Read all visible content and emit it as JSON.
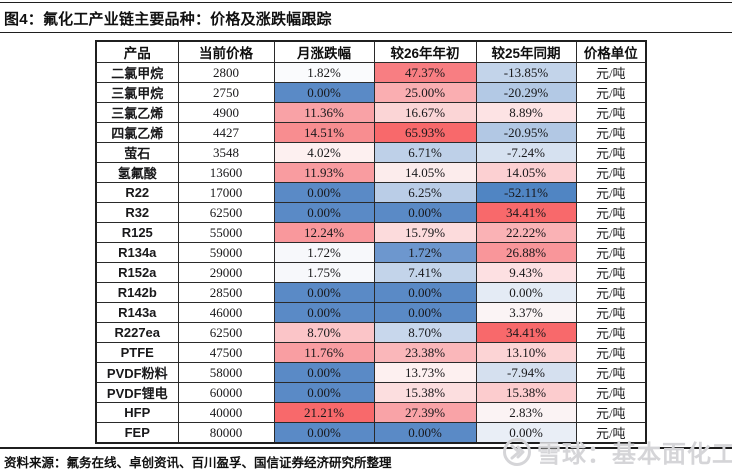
{
  "title": "图4：氟化工产业链主要品种：价格及涨跌幅跟踪",
  "source_note": "资料来源：氟务在线、卓创资讯、百川盈孚、国信证券经济研究所整理",
  "watermark": {
    "text": "雪球：基本面化工",
    "icon": "xueqiu-snowball-logo",
    "color": "#d5d5d8"
  },
  "colors": {
    "max_up_red": "#f8696b",
    "max_down_blue": "#5a8ac6",
    "border": "#1f1f1f"
  },
  "table": {
    "headers": [
      "产品",
      "当前价格",
      "月涨跌幅",
      "较26年年初",
      "较25年同期",
      "价格单位"
    ],
    "rows": [
      {
        "product": "二氯甲烷",
        "price": "2800",
        "monthly": {
          "v": "1.82%",
          "bg": "#fafbfd"
        },
        "vs26": {
          "v": "47.37%",
          "bg": "#f87e82"
        },
        "vs25": {
          "v": "-13.85%",
          "bg": "#c3d4ea"
        },
        "unit": "元/吨"
      },
      {
        "product": "三氯甲烷",
        "price": "2750",
        "monthly": {
          "v": "0.00%",
          "bg": "#5a8ac6"
        },
        "vs26": {
          "v": "25.00%",
          "bg": "#faaeb1"
        },
        "vs25": {
          "v": "-20.29%",
          "bg": "#b3c9e5"
        },
        "unit": "元/吨"
      },
      {
        "product": "三氯乙烯",
        "price": "4900",
        "monthly": {
          "v": "11.36%",
          "bg": "#f9a2a6"
        },
        "vs26": {
          "v": "16.67%",
          "bg": "#fbd5d6"
        },
        "vs25": {
          "v": "8.89%",
          "bg": "#fde3e4"
        },
        "unit": "元/吨"
      },
      {
        "product": "四氯乙烯",
        "price": "4427",
        "monthly": {
          "v": "14.51%",
          "bg": "#f88d90"
        },
        "vs26": {
          "v": "65.93%",
          "bg": "#f8696b"
        },
        "vs25": {
          "v": "-20.95%",
          "bg": "#b2c8e4"
        },
        "unit": "元/吨"
      },
      {
        "product": "萤石",
        "price": "3548",
        "monthly": {
          "v": "4.02%",
          "bg": "#fdf0f0"
        },
        "vs26": {
          "v": "6.71%",
          "bg": "#bed0e8"
        },
        "vs25": {
          "v": "-7.24%",
          "bg": "#d6e1f0"
        },
        "unit": "元/吨"
      },
      {
        "product": "氢氟酸",
        "price": "13600",
        "monthly": {
          "v": "11.93%",
          "bg": "#f99ca0"
        },
        "vs26": {
          "v": "14.05%",
          "bg": "#fcecec"
        },
        "vs25": {
          "v": "14.05%",
          "bg": "#fcd0d2"
        },
        "unit": "元/吨"
      },
      {
        "product": "R22",
        "price": "17000",
        "monthly": {
          "v": "0.00%",
          "bg": "#5a8ac6"
        },
        "vs26": {
          "v": "6.25%",
          "bg": "#bacde7"
        },
        "vs25": {
          "v": "-52.11%",
          "bg": "#5085c3"
        },
        "unit": "元/吨"
      },
      {
        "product": "R32",
        "price": "62500",
        "monthly": {
          "v": "0.00%",
          "bg": "#5a8ac6"
        },
        "vs26": {
          "v": "0.00%",
          "bg": "#5a8ac6"
        },
        "vs25": {
          "v": "34.41%",
          "bg": "#f8696b"
        },
        "unit": "元/吨"
      },
      {
        "product": "R125",
        "price": "55000",
        "monthly": {
          "v": "12.24%",
          "bg": "#f9989c"
        },
        "vs26": {
          "v": "15.79%",
          "bg": "#fcdbdc"
        },
        "vs25": {
          "v": "22.22%",
          "bg": "#fab2b5"
        },
        "unit": "元/吨"
      },
      {
        "product": "R134a",
        "price": "59000",
        "monthly": {
          "v": "1.72%",
          "bg": "#f7f8fb"
        },
        "vs26": {
          "v": "1.72%",
          "bg": "#6d97ce"
        },
        "vs25": {
          "v": "26.88%",
          "bg": "#f9969a"
        },
        "unit": "元/吨"
      },
      {
        "product": "R152a",
        "price": "29000",
        "monthly": {
          "v": "1.75%",
          "bg": "#f7f8fb"
        },
        "vs26": {
          "v": "7.41%",
          "bg": "#c3d4ea"
        },
        "vs25": {
          "v": "9.43%",
          "bg": "#fde0e2"
        },
        "unit": "元/吨"
      },
      {
        "product": "R142b",
        "price": "28500",
        "monthly": {
          "v": "0.00%",
          "bg": "#5a8ac6"
        },
        "vs26": {
          "v": "0.00%",
          "bg": "#5a8ac6"
        },
        "vs25": {
          "v": "0.00%",
          "bg": "#e4ebf5"
        },
        "unit": "元/吨"
      },
      {
        "product": "R143a",
        "price": "46000",
        "monthly": {
          "v": "0.00%",
          "bg": "#5a8ac6"
        },
        "vs26": {
          "v": "0.00%",
          "bg": "#5a8ac6"
        },
        "vs25": {
          "v": "3.37%",
          "bg": "#fbf4f5"
        },
        "unit": "元/吨"
      },
      {
        "product": "R227ea",
        "price": "62500",
        "monthly": {
          "v": "8.70%",
          "bg": "#fbc5c8"
        },
        "vs26": {
          "v": "8.70%",
          "bg": "#c8d7ec"
        },
        "vs25": {
          "v": "34.41%",
          "bg": "#f8696b"
        },
        "unit": "元/吨"
      },
      {
        "product": "PTFE",
        "price": "47500",
        "monthly": {
          "v": "11.76%",
          "bg": "#f99ea2"
        },
        "vs26": {
          "v": "23.38%",
          "bg": "#fab7ba"
        },
        "vs25": {
          "v": "13.10%",
          "bg": "#fcd4d5"
        },
        "unit": "元/吨"
      },
      {
        "product": "PVDF粉料",
        "price": "58000",
        "monthly": {
          "v": "0.00%",
          "bg": "#5a8ac6"
        },
        "vs26": {
          "v": "13.73%",
          "bg": "#fdf0f0"
        },
        "vs25": {
          "v": "-7.94%",
          "bg": "#d5e0ef"
        },
        "unit": "元/吨"
      },
      {
        "product": "PVDF锂电",
        "price": "60000",
        "monthly": {
          "v": "0.00%",
          "bg": "#5a8ac6"
        },
        "vs26": {
          "v": "15.38%",
          "bg": "#fcdedf"
        },
        "vs25": {
          "v": "15.38%",
          "bg": "#fcccce"
        },
        "unit": "元/吨"
      },
      {
        "product": "HFP",
        "price": "40000",
        "monthly": {
          "v": "21.21%",
          "bg": "#f8696b"
        },
        "vs26": {
          "v": "27.39%",
          "bg": "#f9a3a7"
        },
        "vs25": {
          "v": "2.83%",
          "bg": "#fbf3f4"
        },
        "unit": "元/吨"
      },
      {
        "product": "FEP",
        "price": "80000",
        "monthly": {
          "v": "0.00%",
          "bg": "#5a8ac6"
        },
        "vs26": {
          "v": "0.00%",
          "bg": "#5a8ac6"
        },
        "vs25": {
          "v": "0.00%",
          "bg": "#e9eef6"
        },
        "unit": "元/吨"
      }
    ]
  }
}
